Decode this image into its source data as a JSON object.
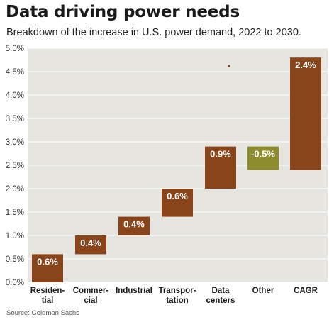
{
  "title": "Data driving power needs",
  "subtitle": "Breakdown of the increase in U.S. power demand, 2022 to 2030.",
  "source": "Source: Goldman Sachs",
  "colors": {
    "bar": "#8a4419",
    "other_bar": "#8c8c2e",
    "plot_bg": "#e6e5e0",
    "grid": "#ffffff"
  },
  "chart_data": {
    "type": "bar",
    "subtype": "waterfall",
    "title": "Data driving power needs",
    "ylim": [
      0,
      5
    ],
    "yticks": [
      0,
      0.5,
      1,
      1.5,
      2,
      2.5,
      3,
      3.5,
      4,
      4.5,
      5
    ],
    "ytick_labels": [
      "0.0%",
      "0.5%",
      "1.0%",
      "1.5%",
      "2.0%",
      "2.5%",
      "3.0%",
      "3.5%",
      "4.0%",
      "4.5%",
      "5.0%"
    ],
    "grid": true,
    "categories": [
      [
        "Residen-",
        "tial"
      ],
      [
        "Commer-",
        "cial"
      ],
      [
        "Industrial"
      ],
      [
        "Transpor-",
        "tation"
      ],
      [
        "Data",
        "centers"
      ],
      [
        "Other"
      ],
      [
        "CAGR"
      ]
    ],
    "bars": [
      {
        "start": 0.0,
        "end": 0.6,
        "label": "0.6%",
        "color": "#8a4419"
      },
      {
        "start": 0.6,
        "end": 1.0,
        "label": "0.4%",
        "color": "#8a4419"
      },
      {
        "start": 1.0,
        "end": 1.4,
        "label": "0.4%",
        "color": "#8a4419"
      },
      {
        "start": 1.4,
        "end": 2.0,
        "label": "0.6%",
        "color": "#8a4419"
      },
      {
        "start": 2.0,
        "end": 2.9,
        "label": "0.9%",
        "color": "#8a4419"
      },
      {
        "start": 2.9,
        "end": 2.4,
        "label": "-0.5%",
        "color": "#8c8c2e"
      },
      {
        "start": 2.4,
        "end": 4.8,
        "label": "2.4%",
        "color": "#8a4419"
      }
    ]
  }
}
